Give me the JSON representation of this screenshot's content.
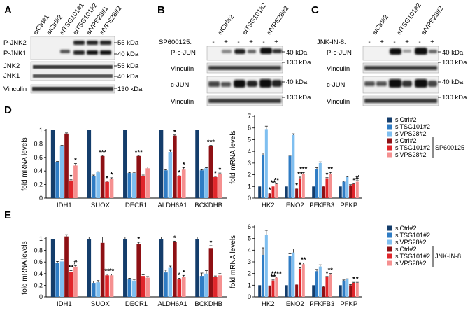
{
  "figure": {
    "panel_labels": [
      "A",
      "B",
      "C",
      "D",
      "E"
    ]
  },
  "blot_a": {
    "lanes": [
      "siCtrl#1",
      "siCtrl#2",
      "siTSG101#1",
      "siTSG101#2",
      "siVPS28#1",
      "siVPS28#2"
    ],
    "rows": [
      {
        "label_left": "P-JNK2\nP-JNK1",
        "markers": [
          "55 kDa",
          "40 kDa"
        ]
      },
      {
        "label_left": "JNK2\nJNK1",
        "markers": [
          "55 kDa",
          "40 kDa"
        ]
      },
      {
        "label_left": "Vinculin",
        "markers": [
          "130 kDa"
        ]
      }
    ]
  },
  "blot_b": {
    "lanes": [
      "siCtrl#2",
      "siTSG101#2",
      "siVPS28#2"
    ],
    "treatment_label": "SP600125:",
    "treatment_signs": [
      "-",
      "+",
      "-",
      "+",
      "-",
      "+"
    ],
    "rows": [
      {
        "label": "P-c-JUN",
        "marker": "40 kDa"
      },
      {
        "label": "Vinculin",
        "marker": "130 kDa"
      },
      {
        "label": "c-JUN",
        "marker": "40 kDa"
      },
      {
        "label": "Vinculin",
        "marker": "130 kDa"
      }
    ]
  },
  "blot_c": {
    "lanes": [
      "siCtrl#2",
      "siTSG101#2",
      "siVPS28#2"
    ],
    "treatment_label": "JNK-IN-8:",
    "treatment_signs": [
      "-",
      "+",
      "-",
      "+",
      "-",
      "+"
    ],
    "rows": [
      {
        "label": "P-c-JUN",
        "marker": "40 kDa"
      },
      {
        "label": "Vinculin",
        "marker": "130 kDa"
      },
      {
        "label": "c-JUN",
        "marker": "40 kDa"
      },
      {
        "label": "Vinculin",
        "marker": "130 kDa"
      }
    ]
  },
  "colors": {
    "siCtrl": "#143d6b",
    "siTSG101": "#2f7cc4",
    "siVPS28": "#7fbff0",
    "siCtrl_inh": "#8e1014",
    "siTSG101_inh": "#e0262b",
    "siVPS28_inh": "#f59090"
  },
  "legend_series": [
    "siCtrl#2",
    "siTSG101#2",
    "siVPS28#2",
    "siCtrl#2",
    "siTSG101#2",
    "siVPS28#2"
  ],
  "chart_data": [
    {
      "id": "D-left",
      "panel": "D",
      "type": "bar",
      "ylabel": "fold mRNA levels",
      "ylim": [
        0,
        1.0
      ],
      "yticks": [
        "0",
        "0.2",
        "0.4",
        "0.6",
        "0.8",
        "1"
      ],
      "categories": [
        "IDH1",
        "SUOX",
        "DECR1",
        "ALDH6A1",
        "BCKDHB"
      ],
      "series": [
        {
          "name": "siCtrl#2",
          "values": [
            1.0,
            1.0,
            1.0,
            1.0,
            1.0
          ],
          "errors": [
            0.0,
            0.0,
            0.0,
            0.0,
            0.0
          ]
        },
        {
          "name": "siTSG101#2",
          "values": [
            0.53,
            0.33,
            0.37,
            0.41,
            0.41
          ],
          "errors": [
            0.01,
            0.01,
            0.01,
            0.01,
            0.01
          ]
        },
        {
          "name": "siVPS28#2",
          "values": [
            0.77,
            0.38,
            0.37,
            0.68,
            0.44
          ],
          "errors": [
            0.01,
            0.01,
            0.01,
            0.03,
            0.01
          ]
        },
        {
          "name": "siCtrl#2 SP600125",
          "values": [
            0.95,
            0.62,
            0.62,
            0.92,
            0.77
          ],
          "errors": [
            0.01,
            0.01,
            0.01,
            0.01,
            0.01
          ]
        },
        {
          "name": "siTSG101#2 SP600125",
          "values": [
            0.26,
            0.24,
            0.33,
            0.32,
            0.31
          ],
          "errors": [
            0.01,
            0.01,
            0.01,
            0.01,
            0.01
          ]
        },
        {
          "name": "siVPS28#2 SP600125",
          "values": [
            0.48,
            0.29,
            0.44,
            0.42,
            0.36
          ],
          "errors": [
            0.03,
            0.01,
            0.02,
            0.03,
            0.01
          ]
        }
      ],
      "annotations": [
        {
          "category": 0,
          "series": 4,
          "text": "*"
        },
        {
          "category": 0,
          "series": 5,
          "text": "*"
        },
        {
          "category": 1,
          "series": 3,
          "text": "***"
        },
        {
          "category": 1,
          "series": 4,
          "text": "*"
        },
        {
          "category": 1,
          "series": 5,
          "text": "*"
        },
        {
          "category": 2,
          "series": 3,
          "text": "***"
        },
        {
          "category": 3,
          "series": 3,
          "text": "*"
        },
        {
          "category": 3,
          "series": 4,
          "text": "*"
        },
        {
          "category": 3,
          "series": 5,
          "text": "*"
        },
        {
          "category": 4,
          "series": 3,
          "text": "***"
        },
        {
          "category": 4,
          "series": 4,
          "text": "*"
        },
        {
          "category": 4,
          "series": 5,
          "text": "*"
        }
      ]
    },
    {
      "id": "D-right",
      "panel": "D",
      "type": "bar",
      "ylabel": "fold mRNA levels",
      "ylim": [
        0,
        7
      ],
      "yticks": [
        "0",
        "1",
        "2",
        "3",
        "4",
        "5",
        "6",
        "7"
      ],
      "categories": [
        "HK2",
        "ENO2",
        "PFKFB3",
        "PFKP"
      ],
      "series": [
        {
          "name": "siCtrl#2",
          "values": [
            1.0,
            1.0,
            1.0,
            1.0
          ],
          "errors": [
            0.0,
            0.0,
            0.0,
            0.0
          ]
        },
        {
          "name": "siTSG101#2",
          "values": [
            3.7,
            3.6,
            2.5,
            1.4
          ],
          "errors": [
            0.15,
            0.05,
            0.1,
            0.05
          ]
        },
        {
          "name": "siVPS28#2",
          "values": [
            5.9,
            5.4,
            3.0,
            1.8
          ],
          "errors": [
            0.25,
            0.1,
            0.1,
            0.05
          ]
        },
        {
          "name": "siCtrl#2 SP600125",
          "values": [
            0.4,
            0.8,
            1.0,
            1.1
          ],
          "errors": [
            0.05,
            0.05,
            0.05,
            0.05
          ]
        },
        {
          "name": "siTSG101#2 SP600125",
          "values": [
            1.0,
            1.7,
            1.7,
            1.2
          ],
          "errors": [
            0.05,
            0.1,
            0.05,
            0.05
          ]
        },
        {
          "name": "siVPS28#2 SP600125",
          "values": [
            1.2,
            2.1,
            2.1,
            1.4
          ],
          "errors": [
            0.05,
            0.1,
            0.1,
            0.1
          ]
        }
      ],
      "annotations": [
        {
          "category": 0,
          "series": 3,
          "text": "*"
        },
        {
          "category": 0,
          "series": 4,
          "text": "**"
        },
        {
          "category": 0,
          "series": 5,
          "text": "**"
        },
        {
          "category": 1,
          "series": 3,
          "text": "*"
        },
        {
          "category": 1,
          "series": 4,
          "text": "**"
        },
        {
          "category": 1,
          "series": 5,
          "text": "***"
        },
        {
          "category": 2,
          "series": 4,
          "text": "*"
        },
        {
          "category": 2,
          "series": 5,
          "text": "**"
        },
        {
          "category": 3,
          "series": 4,
          "text": "*"
        },
        {
          "category": 3,
          "series": 5,
          "text": "#"
        }
      ]
    },
    {
      "id": "E-left",
      "panel": "E",
      "type": "bar",
      "ylabel": "fold mRNA levels",
      "ylim": [
        0,
        1.0
      ],
      "yticks": [
        "0",
        "0.2",
        "0.4",
        "0.6",
        "0.8",
        "1"
      ],
      "categories": [
        "IDH1",
        "SUOX",
        "DECR1",
        "ALDH6A1",
        "BCKDHB"
      ],
      "series": [
        {
          "name": "siCtrl#2",
          "values": [
            1.0,
            1.0,
            1.0,
            1.0,
            1.0
          ],
          "errors": [
            0.0,
            0.03,
            0.03,
            0.03,
            0.03
          ]
        },
        {
          "name": "siTSG101#2",
          "values": [
            0.59,
            0.24,
            0.3,
            0.42,
            0.36
          ],
          "errors": [
            0.02,
            0.03,
            0.02,
            0.04,
            0.05
          ]
        },
        {
          "name": "siVPS28#2",
          "values": [
            0.61,
            0.25,
            0.28,
            0.5,
            0.4
          ],
          "errors": [
            0.03,
            0.03,
            0.02,
            0.03,
            0.05
          ]
        },
        {
          "name": "siCtrl#2 JNK-IN-8",
          "values": [
            1.04,
            0.93,
            0.91,
            0.94,
            0.84
          ],
          "errors": [
            0.03,
            0.1,
            0.03,
            0.02,
            0.04
          ]
        },
        {
          "name": "siTSG101#2 JNK-IN-8",
          "values": [
            0.43,
            0.37,
            0.36,
            0.3,
            0.34
          ],
          "errors": [
            0.02,
            0.02,
            0.02,
            0.02,
            0.02
          ]
        },
        {
          "name": "siVPS28#2 JNK-IN-8",
          "values": [
            0.52,
            0.37,
            0.33,
            0.34,
            0.37
          ],
          "errors": [
            0.02,
            0.02,
            0.02,
            0.03,
            0.03
          ]
        }
      ],
      "annotations": [
        {
          "category": 0,
          "series": 4,
          "text": "**"
        },
        {
          "category": 0,
          "series": 5,
          "text": "#"
        },
        {
          "category": 1,
          "series": 4,
          "text": "**"
        },
        {
          "category": 1,
          "series": 5,
          "text": "**"
        },
        {
          "category": 2,
          "series": 3,
          "text": "*"
        },
        {
          "category": 3,
          "series": 3,
          "text": "*"
        },
        {
          "category": 3,
          "series": 4,
          "text": "*"
        },
        {
          "category": 3,
          "series": 5,
          "text": "*"
        },
        {
          "category": 4,
          "series": 3,
          "text": "*"
        }
      ]
    },
    {
      "id": "E-right",
      "panel": "E",
      "type": "bar",
      "ylabel": "fold mRNA levels",
      "ylim": [
        0,
        6
      ],
      "yticks": [
        "0",
        "1",
        "2",
        "3",
        "4",
        "5",
        "6"
      ],
      "categories": [
        "HK2",
        "ENO2",
        "PFKFB3",
        "PFKP"
      ],
      "series": [
        {
          "name": "siCtrl#2",
          "values": [
            1.0,
            1.0,
            1.0,
            1.0
          ],
          "errors": [
            0.0,
            0.0,
            0.0,
            0.0
          ]
        },
        {
          "name": "siTSG101#2",
          "values": [
            3.6,
            3.5,
            2.2,
            1.4
          ],
          "errors": [
            0.6,
            0.2,
            0.15,
            0.05
          ]
        },
        {
          "name": "siVPS28#2",
          "values": [
            5.3,
            3.8,
            2.6,
            1.5
          ],
          "errors": [
            0.4,
            0.3,
            0.15,
            0.05
          ]
        },
        {
          "name": "siCtrl#2 JNK-IN-8",
          "values": [
            0.9,
            1.05,
            0.85,
            1.0
          ],
          "errors": [
            0.05,
            0.05,
            0.05,
            0.05
          ]
        },
        {
          "name": "siTSG101#2 JNK-IN-8",
          "values": [
            1.4,
            2.4,
            1.7,
            1.2
          ],
          "errors": [
            0.05,
            0.1,
            0.05,
            0.05
          ]
        },
        {
          "name": "siVPS28#2 JNK-IN-8",
          "values": [
            1.65,
            2.8,
            1.9,
            1.2
          ],
          "errors": [
            0.05,
            0.1,
            0.1,
            0.05
          ]
        }
      ],
      "annotations": [
        {
          "category": 0,
          "series": 4,
          "text": "**"
        },
        {
          "category": 0,
          "series": 5,
          "text": "****"
        },
        {
          "category": 1,
          "series": 4,
          "text": "*"
        },
        {
          "category": 1,
          "series": 5,
          "text": "**"
        },
        {
          "category": 2,
          "series": 4,
          "text": "*"
        },
        {
          "category": 2,
          "series": 5,
          "text": "**"
        },
        {
          "category": 3,
          "series": 4,
          "text": "*"
        },
        {
          "category": 3,
          "series": 5,
          "text": "*"
        }
      ]
    }
  ],
  "legends": [
    {
      "panel": "D",
      "entries": [
        "siCtrl#2",
        "siTSG101#2",
        "siVPS28#2",
        "siCtrl#2",
        "siTSG101#2",
        "siVPS28#2"
      ],
      "treatment": "SP600125"
    },
    {
      "panel": "E",
      "entries": [
        "siCtrl#2",
        "siTSG101#2",
        "siVPS28#2",
        "siCtrl#2",
        "siTSG101#2",
        "siVPS28#2"
      ],
      "treatment": "JNK-IN-8"
    }
  ]
}
